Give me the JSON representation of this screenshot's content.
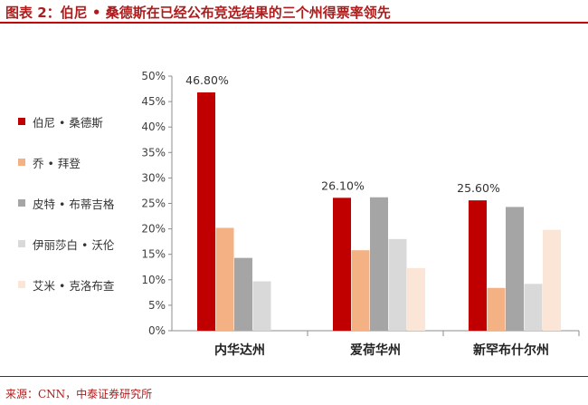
{
  "title": "图表 2：伯尼 • 桑德斯在已经公布竞选结果的三个州得票率领先",
  "source": "来源：CNN，中泰证券研究所",
  "chart_data": {
    "type": "bar",
    "categories": [
      "内华达州",
      "爱荷华州",
      "新罕布什尔州"
    ],
    "series": [
      {
        "name": "伯尼 • 桑德斯",
        "color": "#c00000",
        "values": [
          46.8,
          26.1,
          25.6
        ]
      },
      {
        "name": "乔 • 拜登",
        "color": "#f4b183",
        "values": [
          20.2,
          15.8,
          8.4
        ]
      },
      {
        "name": "皮特 • 布蒂吉格",
        "color": "#a5a5a5",
        "values": [
          14.3,
          26.2,
          24.3
        ]
      },
      {
        "name": "伊丽莎白 • 沃伦",
        "color": "#d9d9d9",
        "values": [
          9.7,
          18.0,
          9.2
        ]
      },
      {
        "name": "艾米 • 克洛布查",
        "color": "#fbe5d6",
        "values": [
          0,
          12.3,
          19.8
        ]
      }
    ],
    "data_labels": [
      {
        "category_index": 0,
        "text": "46.80%"
      },
      {
        "category_index": 1,
        "text": "26.10%"
      },
      {
        "category_index": 2,
        "text": "25.60%"
      }
    ],
    "y_ticks": [
      "0%",
      "5%",
      "10%",
      "15%",
      "20%",
      "25%",
      "30%",
      "35%",
      "40%",
      "45%",
      "50%"
    ],
    "ylim": [
      0,
      50
    ],
    "legend_position": "left",
    "grid": false
  }
}
